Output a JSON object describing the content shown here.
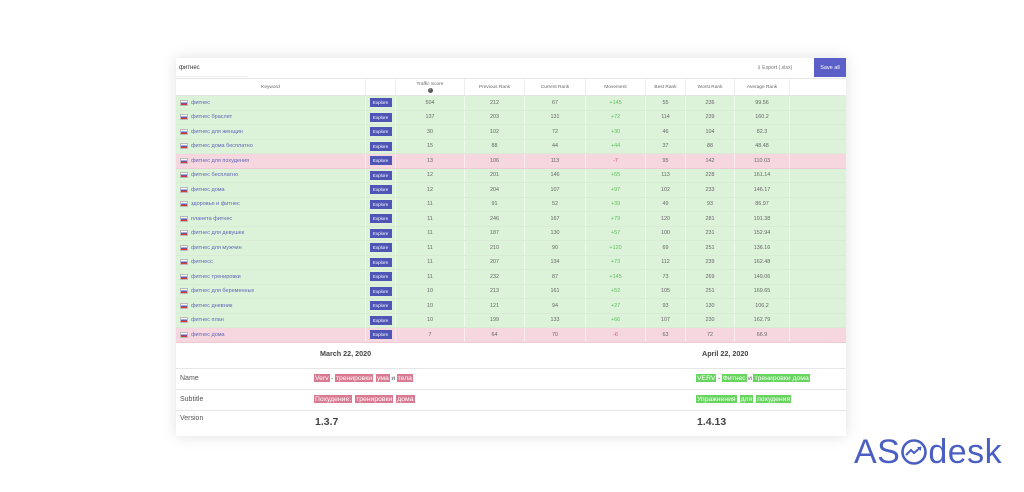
{
  "search": {
    "value": "фитнес"
  },
  "toolbar": {
    "export_label": "Export (.xlsx)",
    "save_all_label": "Save all"
  },
  "columns": [
    "Keyword",
    "",
    "Traffic Score",
    "Previous Rank",
    "Current Rank",
    "Movement",
    "Best Rank",
    "Worst Rank",
    "Average Rank",
    ""
  ],
  "explore_label": "Explore",
  "rows": [
    {
      "keyword": "фитнес",
      "traffic": "504",
      "prev": "212",
      "curr": "67",
      "move": "+145",
      "best": "55",
      "worst": "236",
      "avg": "99.56",
      "trend": "up"
    },
    {
      "keyword": "фитнес браслет",
      "traffic": "137",
      "prev": "203",
      "curr": "131",
      "move": "+72",
      "best": "114",
      "worst": "239",
      "avg": "160.2",
      "trend": "up"
    },
    {
      "keyword": "фитнес для женщин",
      "traffic": "30",
      "prev": "102",
      "curr": "72",
      "move": "+30",
      "best": "46",
      "worst": "104",
      "avg": "82.3",
      "trend": "up"
    },
    {
      "keyword": "фитнес дома бесплатно",
      "traffic": "15",
      "prev": "88",
      "curr": "44",
      "move": "+44",
      "best": "37",
      "worst": "88",
      "avg": "48.48",
      "trend": "up"
    },
    {
      "keyword": "фитнес для похудения",
      "traffic": "13",
      "prev": "106",
      "curr": "113",
      "move": "-7",
      "best": "95",
      "worst": "142",
      "avg": "110.03",
      "trend": "down"
    },
    {
      "keyword": "фитнес бесплатно",
      "traffic": "12",
      "prev": "201",
      "curr": "146",
      "move": "+55",
      "best": "113",
      "worst": "228",
      "avg": "161.14",
      "trend": "up"
    },
    {
      "keyword": "фитнес дома",
      "traffic": "12",
      "prev": "204",
      "curr": "107",
      "move": "+97",
      "best": "102",
      "worst": "233",
      "avg": "146.17",
      "trend": "up"
    },
    {
      "keyword": "здоровье и фитнес",
      "traffic": "11",
      "prev": "91",
      "curr": "52",
      "move": "+39",
      "best": "49",
      "worst": "93",
      "avg": "86.97",
      "trend": "up"
    },
    {
      "keyword": "планета фитнес",
      "traffic": "11",
      "prev": "246",
      "curr": "167",
      "move": "+79",
      "best": "120",
      "worst": "281",
      "avg": "191.38",
      "trend": "up"
    },
    {
      "keyword": "фитнес для девушек",
      "traffic": "11",
      "prev": "187",
      "curr": "130",
      "move": "+57",
      "best": "100",
      "worst": "231",
      "avg": "152.94",
      "trend": "up"
    },
    {
      "keyword": "фитнес для мужчин",
      "traffic": "11",
      "prev": "210",
      "curr": "90",
      "move": "+120",
      "best": "69",
      "worst": "251",
      "avg": "136.16",
      "trend": "up"
    },
    {
      "keyword": "фитнесс",
      "traffic": "11",
      "prev": "207",
      "curr": "134",
      "move": "+73",
      "best": "112",
      "worst": "239",
      "avg": "162.48",
      "trend": "up"
    },
    {
      "keyword": "фитнес тренировки",
      "traffic": "11",
      "prev": "232",
      "curr": "87",
      "move": "+145",
      "best": "73",
      "worst": "269",
      "avg": "149.06",
      "trend": "up"
    },
    {
      "keyword": "фитнес для беременных",
      "traffic": "10",
      "prev": "213",
      "curr": "161",
      "move": "+52",
      "best": "105",
      "worst": "251",
      "avg": "169.65",
      "trend": "up"
    },
    {
      "keyword": "фитнес дневник",
      "traffic": "10",
      "prev": "121",
      "curr": "94",
      "move": "+27",
      "best": "93",
      "worst": "130",
      "avg": "106.2",
      "trend": "up"
    },
    {
      "keyword": "фитнес план",
      "traffic": "10",
      "prev": "199",
      "curr": "133",
      "move": "+66",
      "best": "107",
      "worst": "230",
      "avg": "162.79",
      "trend": "up"
    },
    {
      "keyword": "фитнес дома",
      "traffic": "7",
      "prev": "64",
      "curr": "70",
      "move": "-6",
      "best": "63",
      "worst": "72",
      "avg": "66.9",
      "trend": "down"
    }
  ],
  "compare": {
    "date_before": "March 22, 2020",
    "date_after": "April 22, 2020",
    "name_label": "Name",
    "subtitle_label": "Subtitle",
    "version_label": "Version",
    "name_before": [
      {
        "t": "Verv",
        "c": "red"
      },
      {
        "t": "-",
        "c": "plain"
      },
      {
        "t": "тренировки",
        "c": "red"
      },
      {
        "t": " ",
        "c": "plain"
      },
      {
        "t": "ума",
        "c": "red"
      },
      {
        "t": "и",
        "c": "plain"
      },
      {
        "t": "тела",
        "c": "red"
      }
    ],
    "subtitle_before": [
      {
        "t": "Похудение:",
        "c": "red"
      },
      {
        "t": " ",
        "c": "plain"
      },
      {
        "t": "тренировки",
        "c": "red"
      },
      {
        "t": " ",
        "c": "plain"
      },
      {
        "t": "дома",
        "c": "red"
      }
    ],
    "version_before": "1.3.7",
    "name_after": [
      {
        "t": "VERV",
        "c": "green"
      },
      {
        "t": "-",
        "c": "plain"
      },
      {
        "t": "Фитнес",
        "c": "green"
      },
      {
        "t": "и",
        "c": "plain"
      },
      {
        "t": "тренировки дома",
        "c": "green"
      }
    ],
    "subtitle_after": [
      {
        "t": "Упражнения",
        "c": "green"
      },
      {
        "t": " ",
        "c": "plain"
      },
      {
        "t": "для",
        "c": "green"
      },
      {
        "t": " ",
        "c": "plain"
      },
      {
        "t": "похудения",
        "c": "green"
      }
    ],
    "version_after": "1.4.13"
  },
  "logo": {
    "before": "AS",
    "after": "desk"
  },
  "colors": {
    "up_row": "#dcf2d9",
    "down_row": "#f6d7e0",
    "accent": "#5b5fc7",
    "logo": "#4a5fc1"
  }
}
